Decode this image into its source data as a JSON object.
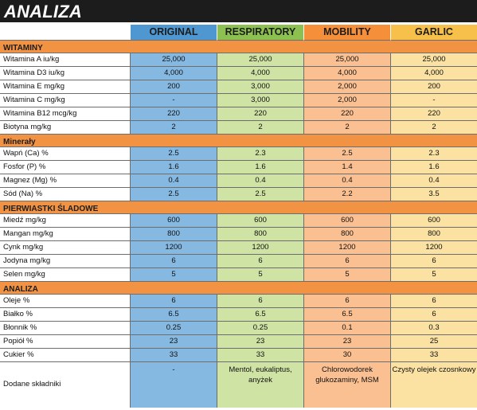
{
  "title": "ANALIZA",
  "columns": [
    "ORIGINAL",
    "RESPIRATORY",
    "MOBILITY",
    "GARLIC"
  ],
  "colors": {
    "original_header": "#4f97d1",
    "respiratory_header": "#8cc152",
    "mobility_header": "#f58f3a",
    "garlic_header": "#f6c04a",
    "section_bar": "#f29344",
    "title_bar": "#1c1c1c"
  },
  "sections": [
    {
      "title": "WITAMINY",
      "rows": [
        {
          "label": "Witamina A iu/kg",
          "values": [
            "25,000",
            "25,000",
            "25,000",
            "25,000"
          ]
        },
        {
          "label": "Witamina D3 iu/kg",
          "values": [
            "4,000",
            "4,000",
            "4,000",
            "4,000"
          ]
        },
        {
          "label": "Witamina E mg/kg",
          "values": [
            "200",
            "3,000",
            "2,000",
            "200"
          ]
        },
        {
          "label": "Witamina C mg/kg",
          "values": [
            "-",
            "3,000",
            "2,000",
            "-"
          ]
        },
        {
          "label": "Witamina B12 mcg/kg",
          "values": [
            "220",
            "220",
            "220",
            "220"
          ]
        },
        {
          "label": "Biotyna mg/kg",
          "values": [
            "2",
            "2",
            "2",
            "2"
          ]
        }
      ]
    },
    {
      "title": "Minerały",
      "rows": [
        {
          "label": "Wapń (Ca) %",
          "values": [
            "2.5",
            "2.3",
            "2.5",
            "2.3"
          ]
        },
        {
          "label": "Fosfor (P) %",
          "values": [
            "1.6",
            "1.6",
            "1.4",
            "1.6"
          ]
        },
        {
          "label": "Magnez (Mg) %",
          "values": [
            "0.4",
            "0.4",
            "0.4",
            "0.4"
          ]
        },
        {
          "label": "Sód (Na) %",
          "values": [
            "2.5",
            "2.5",
            "2.2",
            "3.5"
          ]
        }
      ]
    },
    {
      "title": "PIERWIASTKI ŚLADOWE",
      "rows": [
        {
          "label": "Miedź mg/kg",
          "values": [
            "600",
            "600",
            "600",
            "600"
          ]
        },
        {
          "label": "Mangan mg/kg",
          "values": [
            "800",
            "800",
            "800",
            "800"
          ]
        },
        {
          "label": "Cynk mg/kg",
          "values": [
            "1200",
            "1200",
            "1200",
            "1200"
          ]
        },
        {
          "label": "Jodyna mg/kg",
          "values": [
            "6",
            "6",
            "6",
            "6"
          ]
        },
        {
          "label": "Selen mg/kg",
          "values": [
            "5",
            "5",
            "5",
            "5"
          ]
        }
      ]
    },
    {
      "title": "ANALIZA",
      "rows": [
        {
          "label": "Oleje %",
          "values": [
            "6",
            "6",
            "6",
            "6"
          ]
        },
        {
          "label": "Białko %",
          "values": [
            "6.5",
            "6.5",
            "6.5",
            "6"
          ]
        },
        {
          "label": "Błonnik %",
          "values": [
            "0.25",
            "0.25",
            "0.1",
            "0.3"
          ]
        },
        {
          "label": "Popiół %",
          "values": [
            "23",
            "23",
            "23",
            "25"
          ]
        },
        {
          "label": "Cukier %",
          "values": [
            "33",
            "33",
            "30",
            "33"
          ]
        }
      ]
    }
  ],
  "footer_row": {
    "label": "Dodane składniki",
    "values": [
      "-",
      "Mentol, eukaliptus, anyżek",
      "Chlorowodorek glukozaminy, MSM",
      "Czysty olejek czosnkowy"
    ]
  }
}
